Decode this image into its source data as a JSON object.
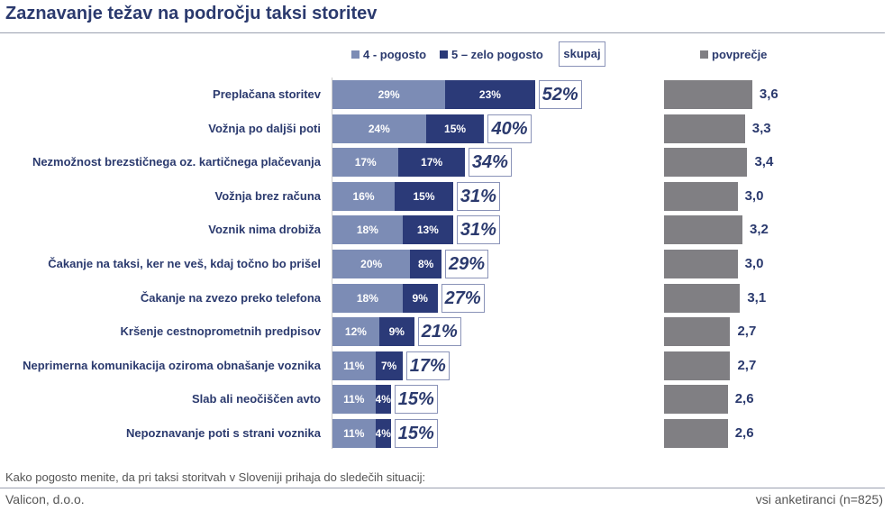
{
  "title": "Zaznavanje težav na področju taksi storitev",
  "colors": {
    "often": "#7c8cb5",
    "very_often": "#2b3a78",
    "avg": "#807f83",
    "text": "#2b3a6e"
  },
  "chart_data": {
    "type": "bar",
    "title": "Zaznavanje težav na področju taksi storitev",
    "legend": {
      "often": "4 - pogosto",
      "very_often": "5 – zelo pogosto",
      "total": "skupaj",
      "avg": "povprečje"
    },
    "categories": [
      "Preplačana storitev",
      "Vožnja po daljši poti",
      "Nezmožnost brezstičnega oz. kartičnega plačevanja",
      "Vožnja brez računa",
      "Voznik nima drobiža",
      "Čakanje na taksi, ker ne veš, kdaj točno bo prišel",
      "Čakanje na zvezo preko telefona",
      "Kršenje cestnoprometnih predpisov",
      "Neprimerna komunikacija oziroma obnašanje voznika",
      "Slab ali neočiščen avto",
      "Nepoznavanje poti s strani voznika"
    ],
    "series": [
      {
        "name": "4 - pogosto",
        "values": [
          29,
          24,
          17,
          16,
          18,
          20,
          18,
          12,
          11,
          11,
          11
        ]
      },
      {
        "name": "5 – zelo pogosto",
        "values": [
          23,
          15,
          17,
          15,
          13,
          8,
          9,
          9,
          7,
          4,
          4
        ]
      },
      {
        "name": "skupaj",
        "values": [
          52,
          40,
          34,
          31,
          31,
          29,
          27,
          21,
          17,
          15,
          15
        ]
      },
      {
        "name": "povprečje",
        "values": [
          "3,6",
          "3,3",
          "3,4",
          "3,0",
          "3,2",
          "3,0",
          "3,1",
          "2,7",
          "2,7",
          "2,6",
          "2,6"
        ]
      }
    ]
  },
  "footer": {
    "question": "Kako pogosto menite, da pri taksi storitvah v Sloveniji prihaja do sledečih situacij:",
    "company": "Valicon, d.o.o.",
    "sample": "vsi anketiranci (n=825)"
  }
}
